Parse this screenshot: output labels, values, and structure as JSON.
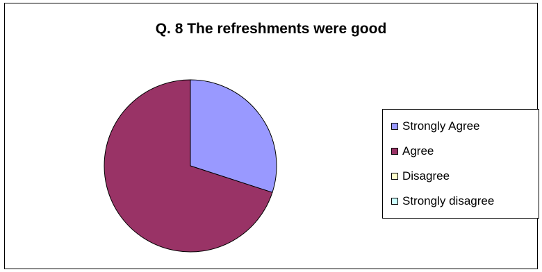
{
  "chart_data": {
    "type": "pie",
    "title": "Q. 8 The refreshments were good",
    "categories": [
      "Strongly Agree",
      "Agree",
      "Disagree",
      "Strongly disagree"
    ],
    "values": [
      30,
      70,
      0,
      0
    ],
    "colors": [
      "#9999ff",
      "#993366",
      "#ffffcc",
      "#ccffff"
    ],
    "legend_position": "right"
  }
}
